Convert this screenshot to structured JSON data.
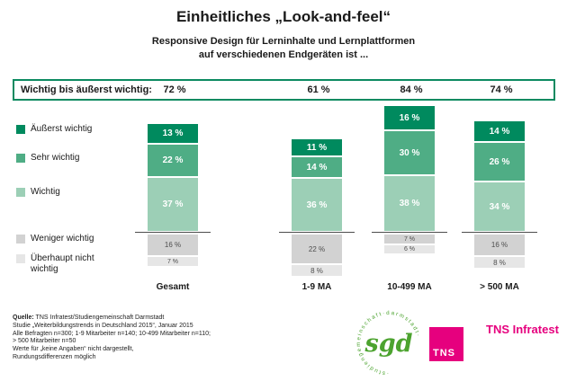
{
  "title": "Einheitliches „Look-and-feel“",
  "subtitle": [
    "Responsive Design für Lerninhalte und Lernplattformen",
    "auf verschiedenen Endgeräten ist ..."
  ],
  "chart_data": {
    "type": "bar",
    "stacked": true,
    "unit": "%",
    "categories": [
      "Gesamt",
      "1-9 MA",
      "10-499 MA",
      "> 500 MA"
    ],
    "series": [
      {
        "name": "Äußerst wichtig",
        "color": "#008A5E",
        "label_color": "#ffffff",
        "values": [
          13,
          11,
          16,
          14
        ]
      },
      {
        "name": "Sehr wichtig",
        "color": "#4FAD85",
        "label_color": "#ffffff",
        "values": [
          22,
          14,
          30,
          26
        ]
      },
      {
        "name": "Wichtig",
        "color": "#9CCFB6",
        "label_color": "#ffffff",
        "values": [
          37,
          36,
          38,
          34
        ]
      },
      {
        "name": "Weniger wichtig",
        "color": "#D2D2D2",
        "label_color": "#4d4d4d",
        "values": [
          16,
          22,
          7,
          16
        ]
      },
      {
        "name": "Überhaupt nicht wichtig",
        "color": "#E6E6E6",
        "label_color": "#4d4d4d",
        "values": [
          7,
          8,
          6,
          8
        ]
      }
    ],
    "summary_row": {
      "label": "Wichtig bis äußerst wichtig:",
      "values": [
        72,
        61,
        84,
        74
      ]
    },
    "baseline_between": [
      "Wichtig",
      "Weniger wichtig"
    ],
    "legend_position": "left",
    "grid": false
  },
  "summary_label": "Wichtig bis äußerst wichtig:",
  "source": {
    "label": "Quelle:",
    "line1_rest": " TNS Infratest/Studiengemeinschaft Darmstadt",
    "lines": [
      "Studie „Weiterbildungstrends in Deutschland 2015“, Januar 2015",
      "Alle Befragten n=300; 1-9 Mitarbeiter n=140; 10-499 Mitarbeiter n=110;",
      "> 500 Mitarbeiter n=50",
      "Werte für „keine Angaben“ nicht dargestellt,",
      "Rundungsdifferenzen möglich"
    ]
  },
  "logos": {
    "sgd_text": "sgd",
    "sgd_ring_text": "· s t u d i e n g e m e i n s c h a f t · d a r m s t a d t ·",
    "tns_box_text": "TNS",
    "tns_infratest_text": "TNS Infratest"
  },
  "colors": {
    "accent_green": "#0B8A60",
    "magenta": "#E6007E",
    "sgd_green": "#4CA32F"
  }
}
